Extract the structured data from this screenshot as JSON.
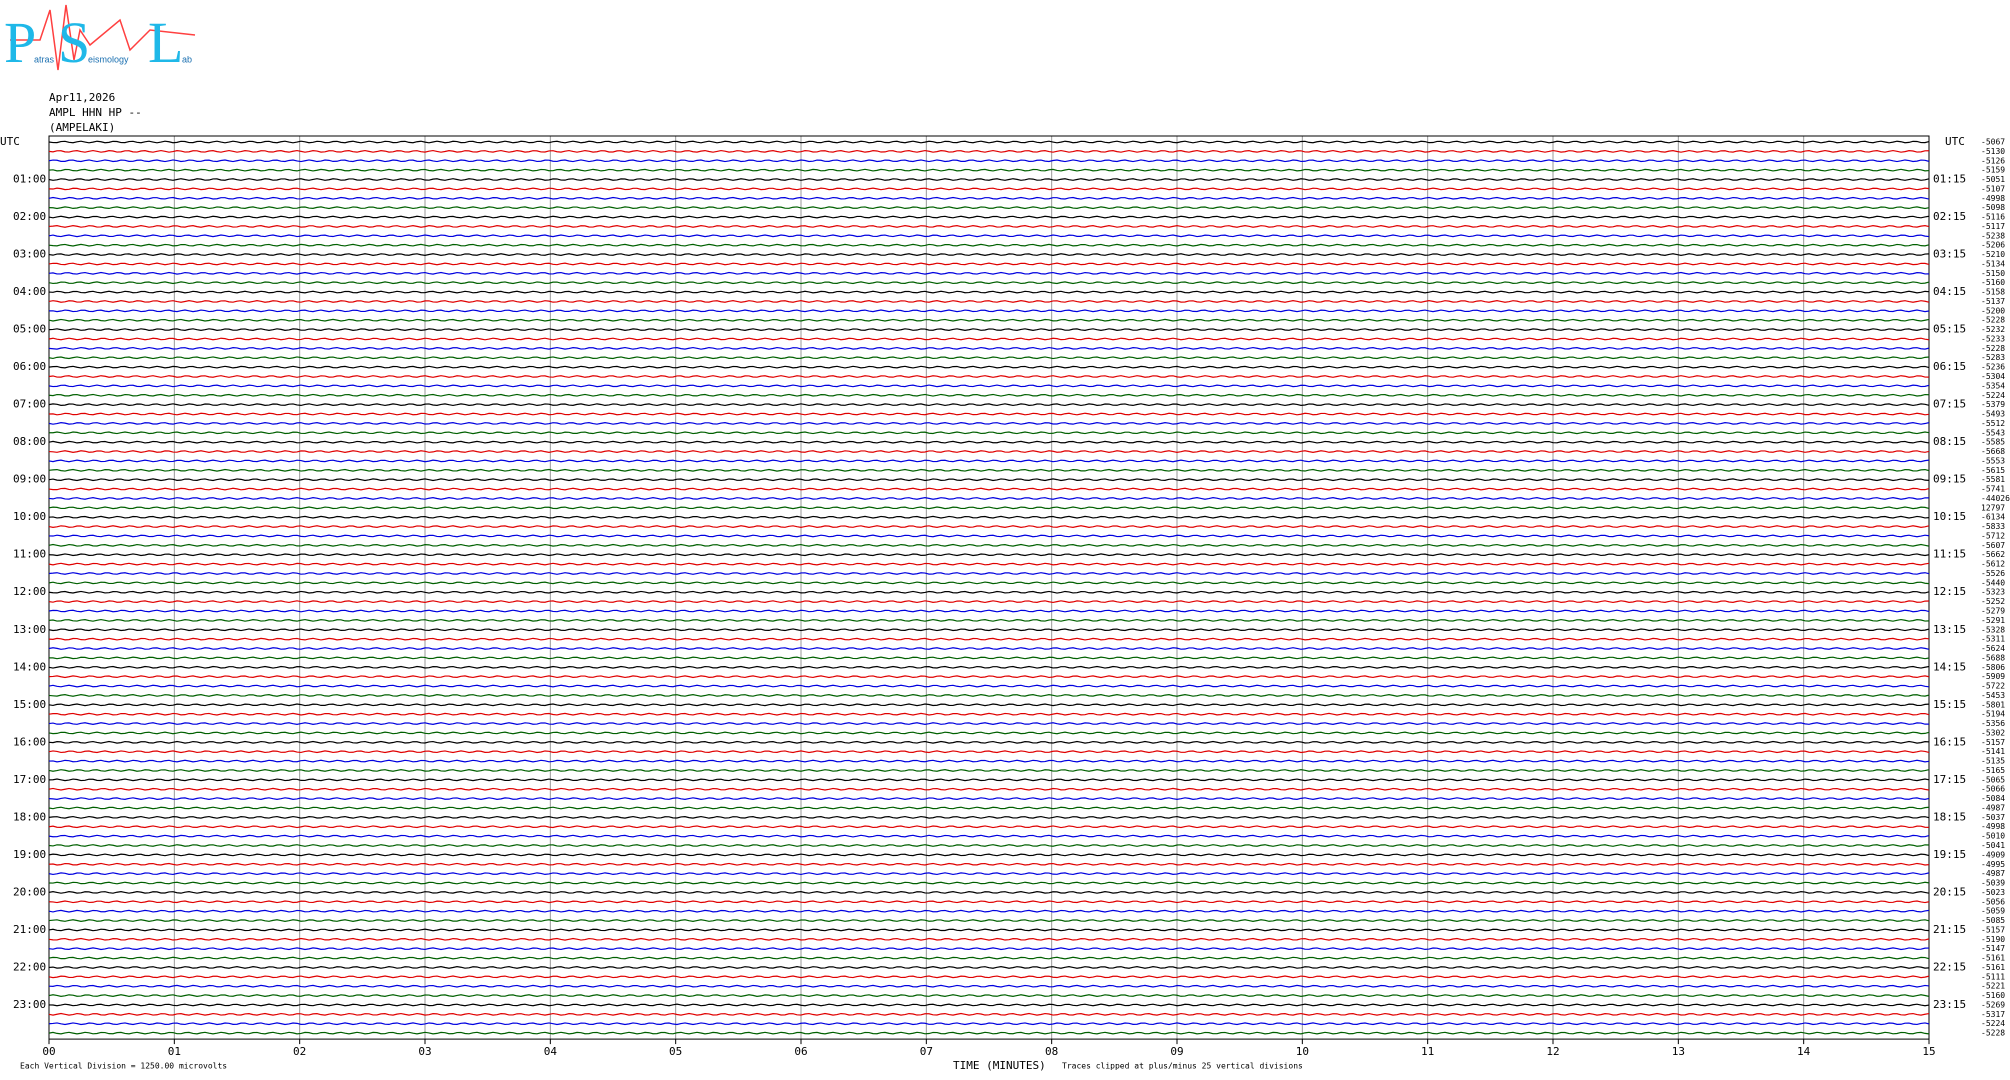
{
  "logo": {
    "letters": [
      "P",
      "S",
      "L"
    ],
    "words": [
      "atras",
      "eismology",
      "ab"
    ]
  },
  "header": {
    "date": "Apr11,2026",
    "station": "AMPL HHN HP --",
    "location": "(AMPELAKI)"
  },
  "left_title": "UTC",
  "right_title": "UTC",
  "left_labels": [
    "01:00",
    "02:00",
    "03:00",
    "04:00",
    "05:00",
    "06:00",
    "07:00",
    "08:00",
    "09:00",
    "10:00",
    "11:00",
    "12:00",
    "13:00",
    "14:00",
    "15:00",
    "16:00",
    "17:00",
    "18:00",
    "19:00",
    "20:00",
    "21:00",
    "22:00",
    "23:00"
  ],
  "right_labels": [
    "01:15",
    "02:15",
    "03:15",
    "04:15",
    "05:15",
    "06:15",
    "07:15",
    "08:15",
    "09:15",
    "10:15",
    "11:15",
    "12:15",
    "13:15",
    "14:15",
    "15:15",
    "16:15",
    "17:15",
    "18:15",
    "19:15",
    "20:15",
    "21:15",
    "22:15",
    "23:15"
  ],
  "right_values": [
    "-5067",
    "-5130",
    "-5126",
    "-5159",
    "-5051",
    "-5107",
    "-4998",
    "-5098",
    "-5116",
    "-5117",
    "-5238",
    "-5206",
    "-5210",
    "-5134",
    "-5150",
    "-5160",
    "-5158",
    "-5137",
    "-5200",
    "-5228",
    "-5232",
    "-5233",
    "-5228",
    "-5283",
    "-5236",
    "-5304",
    "-5354",
    "-5224",
    "-5379",
    "-5493",
    "-5512",
    "-5543",
    "-5585",
    "-5668",
    "-5553",
    "-5615",
    "-5581",
    "-5741",
    "-44026",
    "12797",
    "-6134",
    "-5833",
    "-5712",
    "-5607",
    "-5662",
    "-5612",
    "-5526",
    "-5440",
    "-5323",
    "-5252",
    "-5279",
    "-5291",
    "-5328",
    "-5311",
    "-5624",
    "-5688",
    "-5806",
    "-5909",
    "-5722",
    "-5453",
    "-5801",
    "-5194",
    "-5356",
    "-5302",
    "-5157",
    "-5141",
    "-5135",
    "-5165",
    "-5065",
    "-5066",
    "-5084",
    "-4987",
    "-5037",
    "-4998",
    "-5010",
    "-5041",
    "-4909",
    "-4995",
    "-4987",
    "-5039",
    "-5023",
    "-5056",
    "-5059",
    "-5085",
    "-5157",
    "-5190",
    "-5147",
    "-5161",
    "-5161",
    "-5111",
    "-5221",
    "-5160",
    "-5269",
    "-5317",
    "-5224",
    "-5228"
  ],
  "x_ticks": [
    "00",
    "01",
    "02",
    "03",
    "04",
    "05",
    "06",
    "07",
    "08",
    "09",
    "10",
    "11",
    "12",
    "13",
    "14",
    "15"
  ],
  "footer": {
    "scale": "Each Vertical Division = 1250.00 microvolts",
    "axis_title": "TIME (MINUTES)",
    "clip_note": "Traces clipped at plus/minus 25 vertical divisions"
  }
}
